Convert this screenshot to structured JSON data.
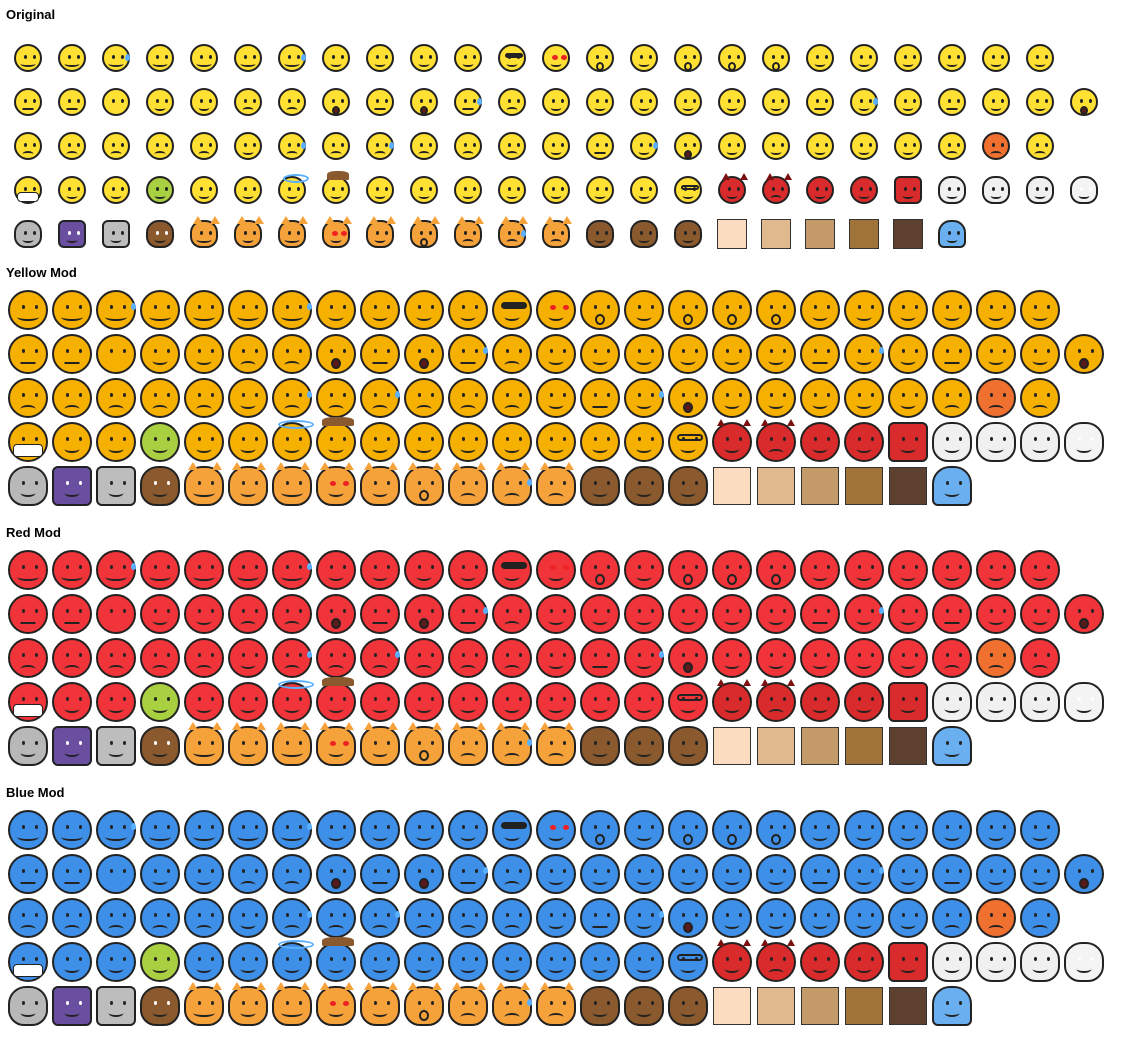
{
  "sections": [
    {
      "title": "Original",
      "variant": "small",
      "fill": "#ffe033",
      "shade": "#f5c800"
    },
    {
      "title": "Yellow Mod",
      "variant": "big",
      "fill": "#f6b000",
      "shade": "#e08f00"
    },
    {
      "title": "Red Mod",
      "variant": "big",
      "fill": "#f0343a",
      "shade": "#d8141e"
    },
    {
      "title": "Blue Mod",
      "variant": "big",
      "fill": "#3e8fe8",
      "shade": "#1f6fd0"
    }
  ],
  "rows": [
    {
      "icons": [
        "grinning-face-icon",
        "beaming-face-icon",
        "face-with-tears-of-joy-icon",
        "rolling-on-floor-laughing-icon",
        "grinning-face-big-eyes-icon",
        "grinning-smiling-eyes-icon",
        "grinning-sweat-icon",
        "squinting-face-icon",
        "winking-face-icon",
        "smiling-eyes-icon",
        "savoring-food-icon",
        "sunglasses-face-icon",
        "heart-eyes-icon",
        "kissing-heart-icon",
        "smiling-hearts-icon",
        "kissing-face-icon",
        "kissing-smiling-eyes-icon",
        "kissing-closed-eyes-icon",
        "relieved-face-icon",
        "slightly-smiling-icon",
        "hugging-face-icon",
        "star-struck-icon",
        "thinking-face-icon",
        "face-raised-eyebrow-icon"
      ]
    },
    {
      "icons": [
        "neutral-face-icon",
        "expressionless-face-icon",
        "no-mouth-face-icon",
        "rolling-eyes-icon",
        "smirking-face-icon",
        "persevering-face-icon",
        "disappointed-relieved-icon",
        "hushed-face-icon",
        "zipper-mouth-icon",
        "open-mouth-icon",
        "unamused-sweat-icon",
        "tired-face-icon",
        "sleeping-face-icon",
        "relieved-closed-eyes-icon",
        "tongue-face-icon",
        "winking-tongue-icon",
        "squinting-tongue-icon",
        "drooling-face-icon",
        "unamused-face-icon",
        "downcast-sweat-icon",
        "pensive-face-icon",
        "confused-face-icon",
        "upside-down-face-icon",
        "money-mouth-icon",
        "astonished-face-icon"
      ]
    },
    {
      "icons": [
        "frowning-face-icon",
        "slightly-frowning-icon",
        "confounded-face-icon",
        "disappointed-face-icon",
        "worried-face-icon",
        "triumph-face-icon",
        "crying-face-icon",
        "sad-but-relieved-icon",
        "loudly-crying-icon",
        "anguished-face-icon",
        "fearful-face-icon",
        "weary-face-icon",
        "exploding-head-icon",
        "grimacing-face-icon",
        "anxious-sweat-icon",
        "screaming-face-icon",
        "hot-face-icon",
        "cold-face-icon",
        "flushed-face-icon",
        "zany-face-icon",
        "dizzy-face-icon",
        "pouting-face-icon",
        "angry-face-icon",
        "cursing-face-icon"
      ]
    },
    {
      "icons": [
        "medical-mask-icon",
        "thermometer-face-icon",
        "bandage-face-icon",
        "nauseated-face-icon",
        "vomiting-face-icon",
        "sneezing-face-icon",
        "halo-face-icon",
        "cowboy-face-icon",
        "partying-face-icon",
        "woozy-face-icon",
        "pleading-face-icon",
        "lying-face-icon",
        "shushing-face-icon",
        "hand-over-mouth-icon",
        "monocle-face-icon",
        "nerd-face-icon",
        "smiling-devil-icon",
        "angry-devil-icon",
        "clown-face-icon",
        "ogre-icon",
        "goblin-icon",
        "skull-icon",
        "skull-crossbones-icon",
        "skull-crossbones-2-icon",
        "ghost-icon"
      ]
    },
    {
      "icons": [
        "alien-icon",
        "space-invader-icon",
        "robot-icon",
        "pile-of-poo-icon",
        "grinning-cat-icon",
        "smiling-cat-icon",
        "cat-tears-of-joy-icon",
        "heart-eyes-cat-icon",
        "wry-cat-icon",
        "kissing-cat-icon",
        "weary-cat-icon",
        "crying-cat-icon",
        "pouting-cat-icon",
        "see-no-evil-monkey-icon",
        "hear-no-evil-monkey-icon",
        "speak-no-evil-monkey-icon",
        "skin-tone-light-icon",
        "skin-tone-medium-light-icon",
        "skin-tone-medium-icon",
        "skin-tone-medium-dark-icon",
        "skin-tone-dark-icon",
        "person-icon"
      ]
    }
  ],
  "skin_tones": [
    "#fbdcc0",
    "#e1b98f",
    "#c49a69",
    "#a07338",
    "#5d4030"
  ],
  "special_colors": {
    "devil": "#d92b2b",
    "cat": "#f6a23a",
    "monkey": "#8a5a2e",
    "alien": "#b8b8b8",
    "invader": "#6a4fa0",
    "robot": "#bdbdbd",
    "poo": "#8a5a2e",
    "ghost": "#f4f4f4",
    "skull": "#f0f0f0",
    "person": "#6ab0f0",
    "nausea": "#a8d040",
    "hot": "#f07030"
  }
}
